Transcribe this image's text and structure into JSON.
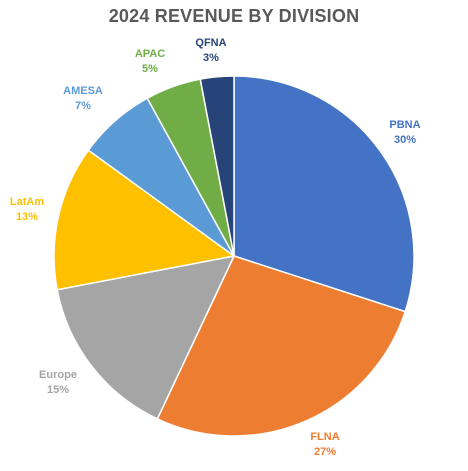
{
  "chart_data": {
    "type": "pie",
    "title": "2024 REVENUE BY DIVISION",
    "slices": [
      {
        "name": "PBNA",
        "value": 30,
        "value_label": "30%",
        "color": "#4472C4"
      },
      {
        "name": "FLNA",
        "value": 27,
        "value_label": "27%",
        "color": "#ED7D31"
      },
      {
        "name": "Europe",
        "value": 15,
        "value_label": "15%",
        "color": "#A5A5A5"
      },
      {
        "name": "LatAm",
        "value": 13,
        "value_label": "13%",
        "color": "#FFC000"
      },
      {
        "name": "AMESA",
        "value": 7,
        "value_label": "7%",
        "color": "#5B9BD5"
      },
      {
        "name": "APAC",
        "value": 5,
        "value_label": "5%",
        "color": "#70AD47"
      },
      {
        "name": "QFNA",
        "value": 3,
        "value_label": "3%",
        "color": "#264478"
      }
    ],
    "legend": "none",
    "label_colors": {
      "PBNA": "#4472C4",
      "FLNA": "#ED7D31",
      "Europe": "#A5A5A5",
      "LatAm": "#FFC000",
      "AMESA": "#5B9BD5",
      "APAC": "#70AD47",
      "QFNA": "#264478"
    }
  }
}
